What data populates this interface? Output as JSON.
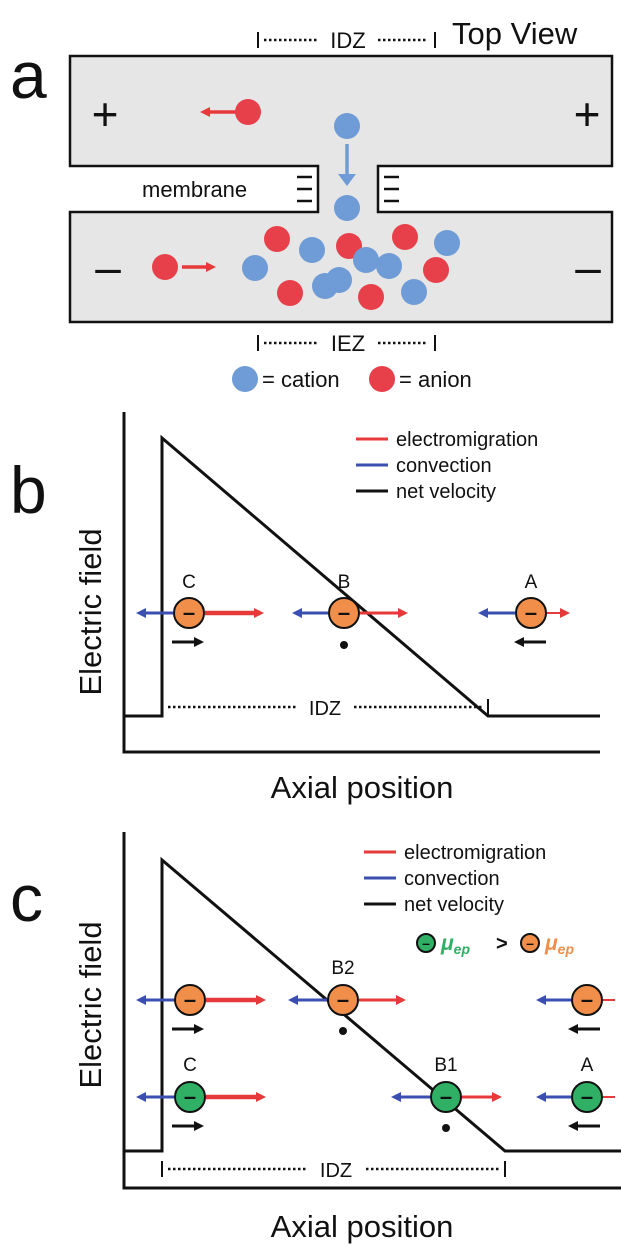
{
  "colors": {
    "cation": "#6f9bd6",
    "anion": "#e8404a",
    "ion_orange": "#f08e4a",
    "ion_green": "#2fb065",
    "electromigration": "#e63a3a",
    "convection": "#3a4fb0",
    "net": "#111111",
    "channel_fill": "#e6e6e6"
  },
  "panel_a": {
    "letter": "a",
    "title": "Top View",
    "idz_label": "IDZ",
    "iez_label": "IEZ",
    "membrane_label": "membrane",
    "plus_sign": "+",
    "minus_sign": "–",
    "legend_cation": "= cation",
    "legend_anion": "= anion",
    "icons": [
      "cation-dot",
      "anion-dot",
      "membrane-tick-icon",
      "arrow-icon"
    ]
  },
  "panel_b": {
    "letter": "b",
    "ylabel": "Electric field",
    "xlabel": "Axial position",
    "legend": [
      "electromigration",
      "convection",
      "net velocity"
    ],
    "ion_labels": [
      "C",
      "B",
      "A"
    ],
    "idz_label": "IDZ",
    "ion_sign": "–"
  },
  "panel_c": {
    "letter": "c",
    "ylabel": "Electric field",
    "xlabel": "Axial position",
    "legend": [
      "electromigration",
      "convection",
      "net velocity"
    ],
    "ion_labels": [
      "B2",
      "C",
      "B1",
      "A"
    ],
    "idz_label": "IDZ",
    "ion_sign": "–",
    "mu_symbol": "μ",
    "mu_sub": "ep",
    "compare": ">"
  }
}
